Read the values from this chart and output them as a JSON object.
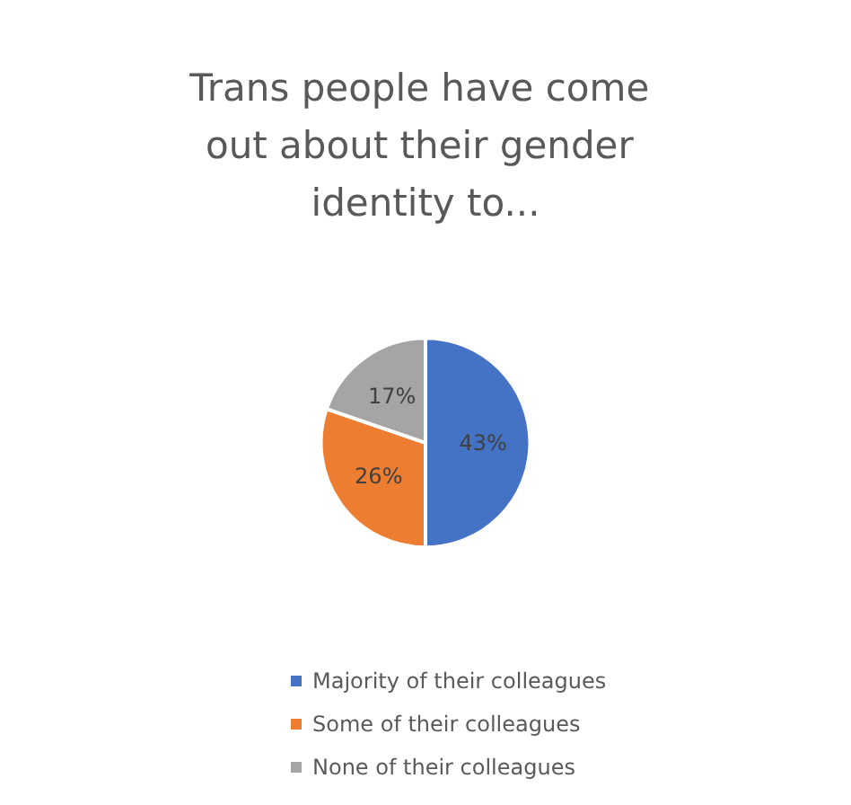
{
  "chart_data": {
    "type": "pie",
    "title": "Trans people have come out about their gender identity to...",
    "categories": [
      "Majority of their colleagues",
      "Some of their colleagues",
      "None of their colleagues"
    ],
    "values": [
      43,
      26,
      17
    ],
    "value_labels": [
      "43%",
      "26%",
      "17%"
    ],
    "colors": [
      "#4472c4",
      "#ed7d31",
      "#a5a5a5"
    ],
    "legend": "bottom"
  }
}
